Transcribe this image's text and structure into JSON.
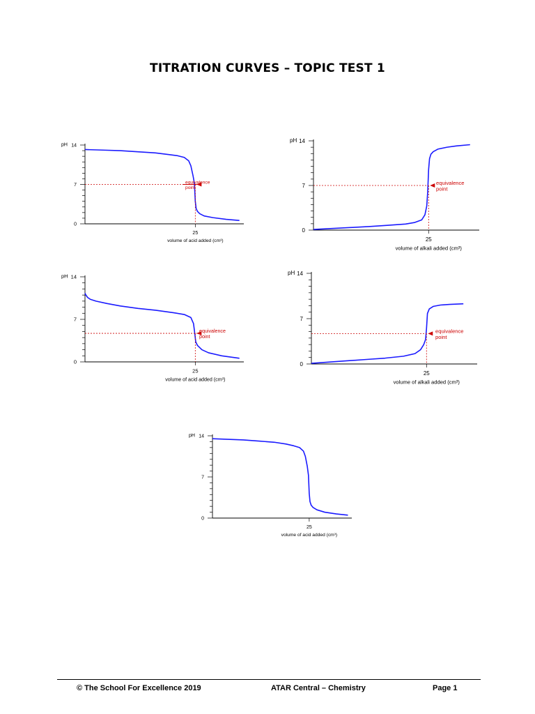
{
  "page": {
    "title": "TITRATION CURVES – TOPIC TEST 1",
    "footer": {
      "left": "©  The School For Excellence 2019",
      "center": "ATAR Central – Chemistry",
      "right": "Page 1"
    }
  },
  "colors": {
    "curve": "#1a1aff",
    "marker": "#cc0000",
    "axis": "#000000"
  },
  "chart_data": [
    {
      "type": "line",
      "title": "",
      "ylabel": "pH",
      "xlabel": "volume of acid added (cm³)",
      "xlim": [
        0,
        36
      ],
      "ylim": [
        0,
        14
      ],
      "yticks": [
        0,
        7,
        14
      ],
      "xticks": [
        25
      ],
      "x": [
        0,
        4,
        8,
        12,
        16,
        19,
        21,
        22.5,
        23.5,
        24,
        24.5,
        24.8,
        25,
        25.2,
        25.5,
        26,
        27,
        29,
        32,
        35
      ],
      "y": [
        13.2,
        13.1,
        13.0,
        12.8,
        12.6,
        12.3,
        12.1,
        11.8,
        11.2,
        10.3,
        8.5,
        7.2,
        4.0,
        2.7,
        2.2,
        1.8,
        1.4,
        1.1,
        0.8,
        0.6
      ],
      "equivalence": {
        "x": 25,
        "y": 7,
        "label_lines": [
          "equivalence",
          "point"
        ]
      }
    },
    {
      "type": "line",
      "title": "",
      "ylabel": "pH",
      "xlabel": "volume of alkali added (cm³)",
      "xlim": [
        0,
        36
      ],
      "ylim": [
        0,
        14
      ],
      "yticks": [
        0,
        7,
        14
      ],
      "xticks": [
        25
      ],
      "x": [
        0,
        4,
        8,
        12,
        16,
        20,
        22,
        23.5,
        24.2,
        24.6,
        24.8,
        25,
        25.2,
        25.5,
        26,
        27,
        29,
        31,
        34
      ],
      "y": [
        0.1,
        0.25,
        0.4,
        0.55,
        0.75,
        0.95,
        1.2,
        1.6,
        2.4,
        3.8,
        6.0,
        9.5,
        11.2,
        11.9,
        12.3,
        12.7,
        13.0,
        13.2,
        13.4
      ],
      "equivalence": {
        "x": 25,
        "y": 7,
        "label_lines": [
          "equivalence",
          "point"
        ]
      }
    },
    {
      "type": "line",
      "title": "",
      "ylabel": "pH",
      "xlabel": "volume of acid added (cm³)",
      "xlim": [
        0,
        36
      ],
      "ylim": [
        0,
        14
      ],
      "yticks": [
        0,
        7,
        14
      ],
      "xticks": [
        25
      ],
      "x": [
        0,
        0.2,
        0.6,
        1.2,
        2.5,
        5,
        8,
        12,
        16,
        20,
        22.5,
        24,
        24.6,
        24.9,
        25.1,
        25.5,
        26.5,
        28,
        31,
        35
      ],
      "y": [
        11.3,
        11.0,
        10.6,
        10.3,
        10.0,
        9.6,
        9.2,
        8.8,
        8.5,
        8.1,
        7.8,
        7.3,
        6.3,
        4.6,
        3.3,
        2.7,
        2.0,
        1.5,
        1.0,
        0.6
      ],
      "equivalence": {
        "x": 25,
        "y": 4.7,
        "label_lines": [
          "equivalence",
          "point"
        ]
      }
    },
    {
      "type": "line",
      "title": "",
      "ylabel": "pH",
      "xlabel": "volume of alkali added (cm³)",
      "xlim": [
        0,
        36
      ],
      "ylim": [
        0,
        14
      ],
      "yticks": [
        0,
        7,
        14
      ],
      "xticks": [
        25
      ],
      "x": [
        0,
        4,
        8,
        12,
        16,
        20,
        22.5,
        23.7,
        24.4,
        24.8,
        25,
        25.2,
        25.6,
        26.5,
        28,
        30,
        33
      ],
      "y": [
        0.1,
        0.3,
        0.5,
        0.7,
        0.9,
        1.2,
        1.6,
        2.2,
        3.0,
        3.8,
        5.5,
        7.8,
        8.5,
        8.9,
        9.1,
        9.2,
        9.3
      ],
      "equivalence": {
        "x": 25,
        "y": 4.7,
        "label_lines": [
          "equivalence",
          "point"
        ]
      }
    },
    {
      "type": "line",
      "title": "",
      "ylabel": "pH",
      "xlabel": "volume of acid added (cm³)",
      "xlim": [
        0,
        36
      ],
      "ylim": [
        0,
        14
      ],
      "yticks": [
        0,
        7,
        14
      ],
      "xticks": [
        25
      ],
      "x": [
        0,
        4,
        8,
        12,
        16,
        19,
        21,
        22.5,
        23.5,
        24,
        24.5,
        24.8,
        25,
        25.2,
        25.5,
        26,
        27,
        29,
        32,
        35
      ],
      "y": [
        13.5,
        13.4,
        13.3,
        13.1,
        12.9,
        12.6,
        12.3,
        12.0,
        11.4,
        10.5,
        8.8,
        7.3,
        4.2,
        2.8,
        2.2,
        1.8,
        1.4,
        1.0,
        0.7,
        0.5
      ]
    }
  ]
}
